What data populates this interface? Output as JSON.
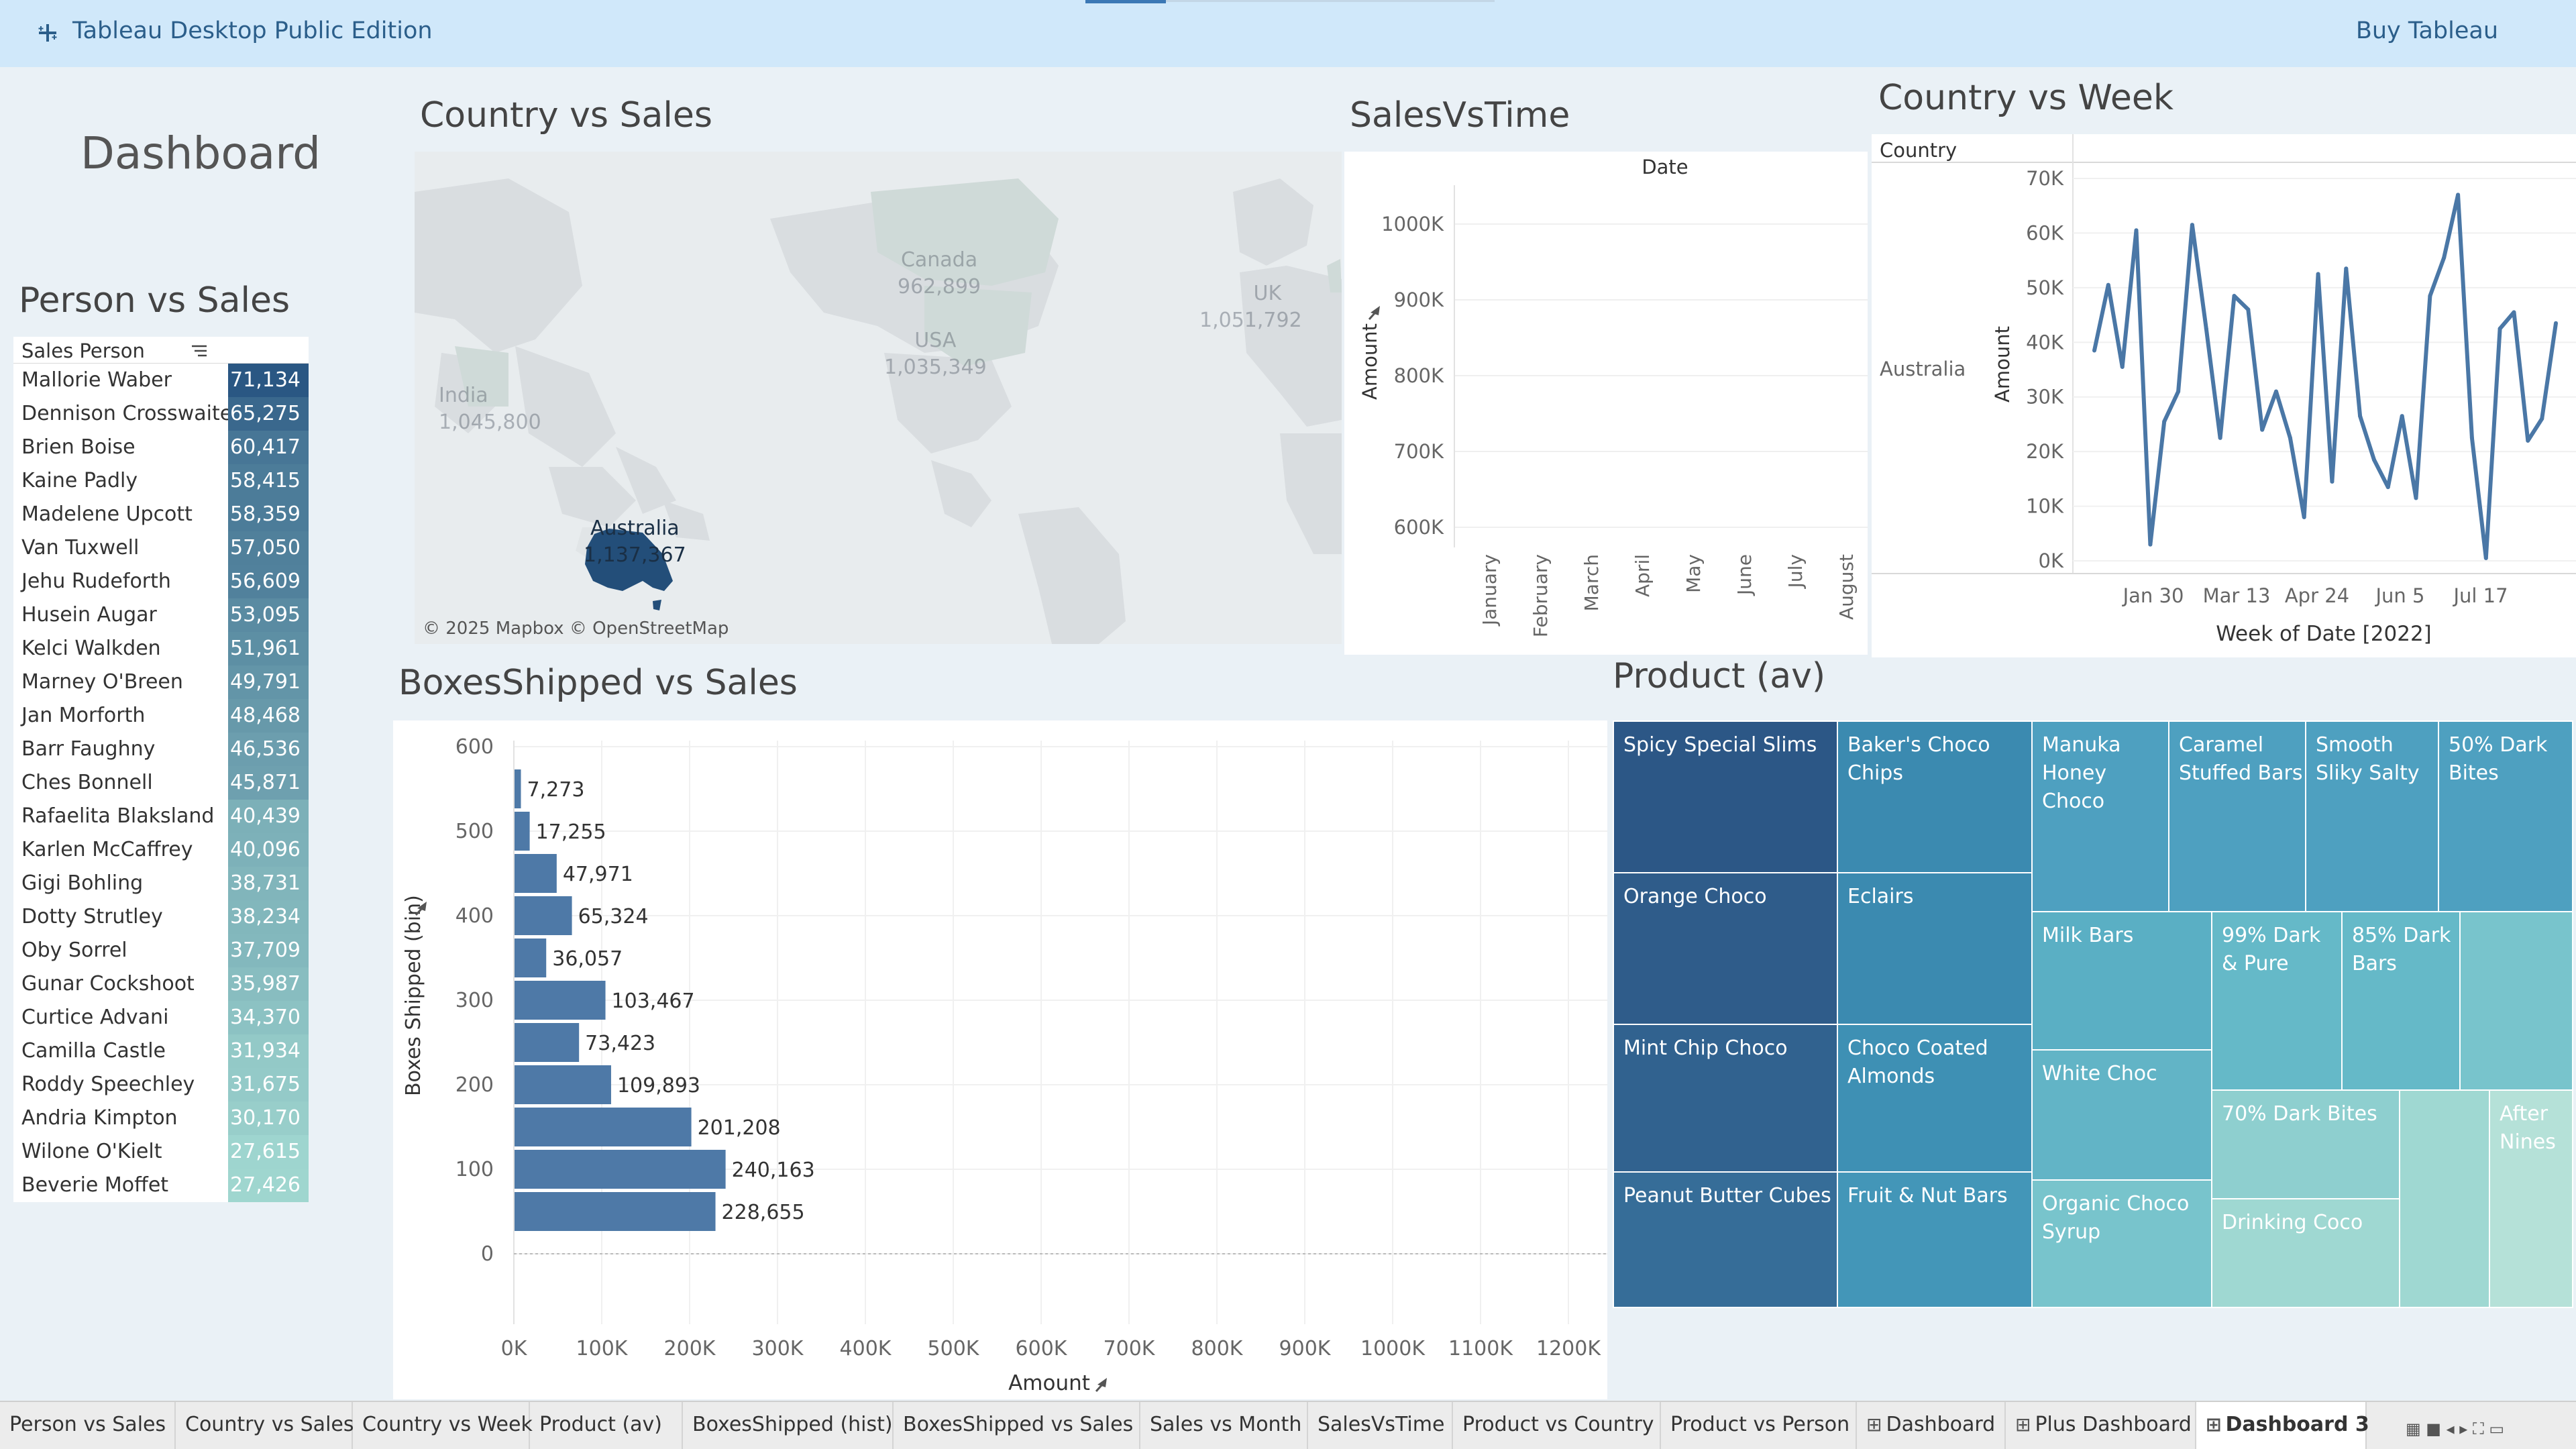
{
  "app": {
    "title": "Tableau Desktop Public Edition",
    "buy_label": "Buy Tableau",
    "logo_icon": "tableau-logo-icon"
  },
  "dashboard_title": "Dashboard",
  "colors": {
    "accent": "#2b5e8a",
    "dark_blue": "#2a5783",
    "bar_blue": "#4e79a7",
    "line_blue": "#4a77a6",
    "australia": "#234e79"
  },
  "person_sales": {
    "title": "Person vs Sales",
    "column_header": "Sales Person",
    "rows": [
      {
        "name": "Mallorie Waber",
        "value": "71,134"
      },
      {
        "name": "Dennison Crosswaite",
        "value": "65,275"
      },
      {
        "name": "Brien Boise",
        "value": "60,417"
      },
      {
        "name": "Kaine Padly",
        "value": "58,415"
      },
      {
        "name": "Madelene Upcott",
        "value": "58,359"
      },
      {
        "name": "Van Tuxwell",
        "value": "57,050"
      },
      {
        "name": "Jehu Rudeforth",
        "value": "56,609"
      },
      {
        "name": "Husein Augar",
        "value": "53,095"
      },
      {
        "name": "Kelci Walkden",
        "value": "51,961"
      },
      {
        "name": "Marney O'Breen",
        "value": "49,791"
      },
      {
        "name": "Jan Morforth",
        "value": "48,468"
      },
      {
        "name": "Barr Faughny",
        "value": "46,536"
      },
      {
        "name": "Ches Bonnell",
        "value": "45,871"
      },
      {
        "name": "Rafaelita Blaksland",
        "value": "40,439"
      },
      {
        "name": "Karlen McCaffrey",
        "value": "40,096"
      },
      {
        "name": "Gigi Bohling",
        "value": "38,731"
      },
      {
        "name": "Dotty Strutley",
        "value": "38,234"
      },
      {
        "name": "Oby Sorrel",
        "value": "37,709"
      },
      {
        "name": "Gunar Cockshoot",
        "value": "35,987"
      },
      {
        "name": "Curtice Advani",
        "value": "34,370"
      },
      {
        "name": "Camilla Castle",
        "value": "31,934"
      },
      {
        "name": "Roddy Speechley",
        "value": "31,675"
      },
      {
        "name": "Andria Kimpton",
        "value": "30,170"
      },
      {
        "name": "Wilone O'Kielt",
        "value": "27,615"
      },
      {
        "name": "Beverie Moffet",
        "value": "27,426"
      }
    ]
  },
  "map": {
    "title": "Country vs Sales",
    "credit": "© 2025 Mapbox © OpenStreetMap",
    "labels": [
      {
        "country": "Canada",
        "value": "962,899"
      },
      {
        "country": "USA",
        "value": "1,035,349"
      },
      {
        "country": "UK",
        "value": "1,051,792"
      },
      {
        "country": "India",
        "value": "1,045,800"
      },
      {
        "country": "Australia",
        "value": "1,137,367"
      }
    ]
  },
  "sales_vs_time": {
    "title": "SalesVsTime",
    "header": "Date",
    "ylabel": "Amount",
    "yticks": [
      "1000K",
      "900K",
      "800K",
      "700K",
      "600K"
    ],
    "months": [
      "January",
      "February",
      "March",
      "April",
      "May",
      "June",
      "July",
      "August"
    ]
  },
  "country_week": {
    "title": "Country vs Week",
    "row_header": "Country",
    "row_label": "Australia",
    "ylabel": "Amount",
    "xlabel": "Week of Date [2022]",
    "yticks": [
      "70K",
      "60K",
      "50K",
      "40K",
      "30K",
      "20K",
      "10K",
      "0K"
    ],
    "xticks": [
      "Jan 30",
      "Mar 13",
      "Apr 24",
      "Jun 5",
      "Jul 17"
    ]
  },
  "boxes_sales": {
    "title": "BoxesShipped vs Sales",
    "ylabel": "Boxes Shipped (bin)",
    "xlabel": "Amount",
    "yticks": [
      "600",
      "500",
      "400",
      "300",
      "200",
      "100",
      "0"
    ],
    "xticks": [
      "0K",
      "100K",
      "200K",
      "300K",
      "400K",
      "500K",
      "600K",
      "700K",
      "800K",
      "900K",
      "1000K",
      "1100K",
      "1200K"
    ]
  },
  "product": {
    "title": "Product (av)",
    "cells": [
      {
        "label": "Spicy Special Slims",
        "color": "#2c5786"
      },
      {
        "label": "Baker's Choco Chips",
        "color": "#3b8ab0"
      },
      {
        "label": "Manuka Honey Choco",
        "color": "#4ea0c0"
      },
      {
        "label": "Caramel Stuffed Bars",
        "color": "#4ea0c0"
      },
      {
        "label": "Smooth Sliky Salty",
        "color": "#4ea0c0"
      },
      {
        "label": "50% Dark Bites",
        "color": "#4ea0c0"
      },
      {
        "label": "Orange Choco",
        "color": "#2f5c8a"
      },
      {
        "label": "Eclairs",
        "color": "#3b8ab0"
      },
      {
        "label": "Milk Bars",
        "color": "#5aafc4"
      },
      {
        "label": "99% Dark & Pure",
        "color": "#65b9c8"
      },
      {
        "label": "85% Dark Bars",
        "color": "#65b9c8"
      },
      {
        "label": "",
        "color": "#78c4cc"
      },
      {
        "label": "Mint Chip Choco",
        "color": "#31628f"
      },
      {
        "label": "Choco Coated Almonds",
        "color": "#3e90b4"
      },
      {
        "label": "White Choc",
        "color": "#62b4c6"
      },
      {
        "label": "70% Dark Bites",
        "color": "#8ecfcf"
      },
      {
        "label": "",
        "color": "#9fd8d2"
      },
      {
        "label": "After Nines",
        "color": "#b5e1d8"
      },
      {
        "label": "Peanut Butter Cubes",
        "color": "#366d98"
      },
      {
        "label": "Fruit & Nut Bars",
        "color": "#4396b8"
      },
      {
        "label": "Organic Choco Syrup",
        "color": "#78c4cc"
      },
      {
        "label": "Drinking Coco",
        "color": "#9fd8d2"
      }
    ]
  },
  "chart_data": [
    {
      "type": "bar",
      "title": "BoxesShipped vs Sales",
      "orientation": "horizontal",
      "xlabel": "Amount",
      "ylabel": "Boxes Shipped (bin)",
      "categories": [
        "550",
        "500",
        "450",
        "400",
        "350",
        "300",
        "250",
        "200",
        "150",
        "100",
        "50"
      ],
      "values": [
        7273,
        17255,
        47971,
        65324,
        36057,
        103467,
        73423,
        109893,
        201208,
        240163,
        228655
      ],
      "labels": [
        "7,273",
        "17,255",
        "47,971",
        "65,324",
        "36,057",
        "103,467",
        "73,423",
        "109,893",
        "201,208",
        "240,163",
        "228,655"
      ],
      "xlim": [
        0,
        1200000
      ],
      "ylim": [
        0,
        600
      ],
      "color": "#4e79a7"
    },
    {
      "type": "line",
      "title": "Country vs Week",
      "xlabel": "Week of Date [2022]",
      "ylabel": "Amount",
      "x": [
        "Jan 2",
        "Jan 9",
        "Jan 16",
        "Jan 23",
        "Jan 30",
        "Feb 6",
        "Feb 13",
        "Feb 20",
        "Feb 27",
        "Mar 6",
        "Mar 13",
        "Mar 20",
        "Mar 27",
        "Apr 3",
        "Apr 10",
        "Apr 17",
        "Apr 24",
        "May 1",
        "May 8",
        "May 15",
        "May 22",
        "May 29",
        "Jun 5",
        "Jun 12",
        "Jun 19",
        "Jun 26",
        "Jul 3",
        "Jul 10",
        "Jul 17",
        "Jul 24",
        "Jul 31",
        "Aug 7",
        "Aug 14",
        "Aug 21"
      ],
      "series": [
        {
          "values": [
            38500,
            50500,
            35500,
            60500,
            3000,
            25500,
            31000,
            61500,
            42500,
            22500,
            48500,
            46000,
            24000,
            31000,
            22500,
            8000,
            52500,
            14500,
            53500,
            26500,
            18500,
            13500,
            26500,
            11500,
            48500,
            55500,
            67000,
            22500,
            500,
            42500,
            45500,
            22000,
            26000,
            43500
          ]
        }
      ],
      "ylim": [
        0,
        70000
      ],
      "color": "#4a77a6"
    }
  ]
}
